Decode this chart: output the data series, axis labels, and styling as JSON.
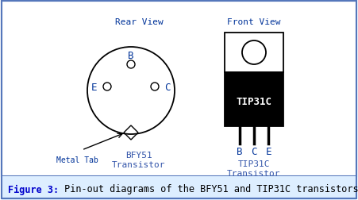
{
  "bg_color": "#ffffff",
  "border_color": "#5577bb",
  "caption_bg": "#ddeeff",
  "title_text": "Figure 3:",
  "title_suffix": " Pin-out diagrams of the BFY51 and TIP31C transistors",
  "title_color": "#0000cc",
  "title_suffix_color": "#000000",
  "rear_view_label": "Rear View",
  "front_view_label": "Front View",
  "bfy51_label1": "BFY51",
  "bfy51_label2": "Transistor",
  "tip31c_label1": "TIP31C",
  "tip31c_label2": "Transistor",
  "metal_tab_label": "Metal Tab",
  "label_color": "#003399",
  "label_color2": "#3355aa",
  "fig_w": 451,
  "fig_h": 253
}
